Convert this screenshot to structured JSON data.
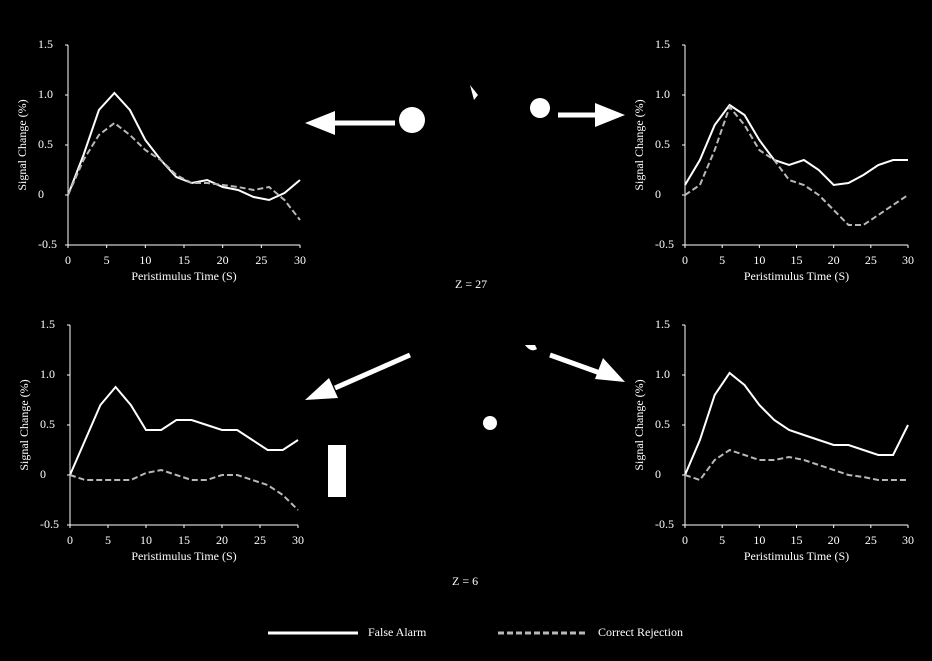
{
  "chart_data": [
    {
      "type": "line",
      "x_label": "Peristimulus Time (S)",
      "y_label": "Signal Change (%)",
      "x": [
        0,
        2,
        4,
        6,
        8,
        10,
        12,
        14,
        16,
        18,
        20,
        22,
        24,
        26,
        28,
        30
      ],
      "xlim": [
        0,
        30
      ],
      "xticks": [
        0,
        5,
        10,
        15,
        20,
        25,
        30
      ],
      "ylim": [
        -0.5,
        1.5
      ],
      "yticks": [
        -0.5,
        0,
        0.5,
        {
          "value": 1,
          "label": "1.0"
        },
        1.5
      ],
      "series": [
        {
          "name": "False Alarm",
          "color": "#ffffff",
          "values": [
            0,
            0.4,
            0.85,
            1.02,
            0.85,
            0.55,
            0.35,
            0.18,
            0.12,
            0.15,
            0.08,
            0.05,
            -0.02,
            -0.05,
            0.02,
            0.15
          ]
        },
        {
          "name": "Correct Rejection",
          "color": "#b8b8b8",
          "values": [
            0,
            0.35,
            0.6,
            0.72,
            0.6,
            0.45,
            0.35,
            0.2,
            0.12,
            0.12,
            0.1,
            0.08,
            0.05,
            0.08,
            -0.05,
            -0.25
          ]
        }
      ]
    },
    {
      "type": "line",
      "x_label": "Peristimulus Time (S)",
      "y_label": "Signal Change (%)",
      "x": [
        0,
        2,
        4,
        6,
        8,
        10,
        12,
        14,
        16,
        18,
        20,
        22,
        24,
        26,
        28,
        30
      ],
      "xlim": [
        0,
        30
      ],
      "xticks": [
        0,
        5,
        10,
        15,
        20,
        25,
        30
      ],
      "ylim": [
        -0.5,
        1.5
      ],
      "yticks": [
        -0.5,
        0,
        0.5,
        {
          "value": 1,
          "label": "1.0"
        },
        1.5
      ],
      "series": [
        {
          "name": "False Alarm",
          "color": "#ffffff",
          "values": [
            0.1,
            0.35,
            0.7,
            0.9,
            0.8,
            0.55,
            0.35,
            0.3,
            0.35,
            0.25,
            0.1,
            0.12,
            0.2,
            0.3,
            0.35,
            0.35
          ]
        },
        {
          "name": "Correct Rejection",
          "color": "#b8b8b8",
          "values": [
            0,
            0.1,
            0.45,
            0.88,
            0.7,
            0.45,
            0.35,
            0.15,
            0.1,
            0,
            -0.15,
            -0.3,
            -0.3,
            -0.2,
            -0.1,
            0
          ]
        }
      ]
    },
    {
      "type": "line",
      "x_label": "Peristimulus Time (S)",
      "y_label": "Signal Change (%)",
      "x": [
        0,
        2,
        4,
        6,
        8,
        10,
        12,
        14,
        16,
        18,
        20,
        22,
        24,
        26,
        28,
        30
      ],
      "xlim": [
        0,
        30
      ],
      "xticks": [
        0,
        5,
        10,
        15,
        20,
        25,
        30
      ],
      "ylim": [
        -0.5,
        1.5
      ],
      "yticks": [
        -0.5,
        0,
        0.5,
        {
          "value": 1,
          "label": "1.0"
        },
        1.5
      ],
      "series": [
        {
          "name": "False Alarm",
          "color": "#ffffff",
          "values": [
            0,
            0.35,
            0.7,
            0.88,
            0.7,
            0.45,
            0.45,
            0.55,
            0.55,
            0.5,
            0.45,
            0.45,
            0.35,
            0.25,
            0.25,
            0.35
          ]
        },
        {
          "name": "Correct Rejection",
          "color": "#b8b8b8",
          "values": [
            0,
            -0.05,
            -0.05,
            -0.05,
            -0.05,
            0.02,
            0.05,
            0,
            -0.05,
            -0.05,
            0,
            0,
            -0.05,
            -0.1,
            -0.2,
            -0.35
          ]
        }
      ]
    },
    {
      "type": "line",
      "x_label": "Peristimulus Time (S)",
      "y_label": "Signal Change (%)",
      "x": [
        0,
        2,
        4,
        6,
        8,
        10,
        12,
        14,
        16,
        18,
        20,
        22,
        24,
        26,
        28,
        30
      ],
      "xlim": [
        0,
        30
      ],
      "xticks": [
        0,
        5,
        10,
        15,
        20,
        25,
        30
      ],
      "ylim": [
        -0.5,
        1.5
      ],
      "yticks": [
        -0.5,
        0,
        0.5,
        {
          "value": 1,
          "label": "1.0"
        },
        1.5
      ],
      "series": [
        {
          "name": "False Alarm",
          "color": "#ffffff",
          "values": [
            0,
            0.35,
            0.8,
            1.02,
            0.9,
            0.7,
            0.55,
            0.45,
            0.4,
            0.35,
            0.3,
            0.3,
            0.25,
            0.2,
            0.2,
            0.5
          ]
        },
        {
          "name": "Correct Rejection",
          "color": "#b8b8b8",
          "values": [
            0,
            -0.05,
            0.15,
            0.25,
            0.2,
            0.15,
            0.15,
            0.18,
            0.15,
            0.1,
            0.05,
            0,
            -0.02,
            -0.05,
            -0.05,
            -0.05
          ]
        }
      ]
    }
  ],
  "annotations": [
    "Z = 27",
    "Z = 6"
  ]
}
